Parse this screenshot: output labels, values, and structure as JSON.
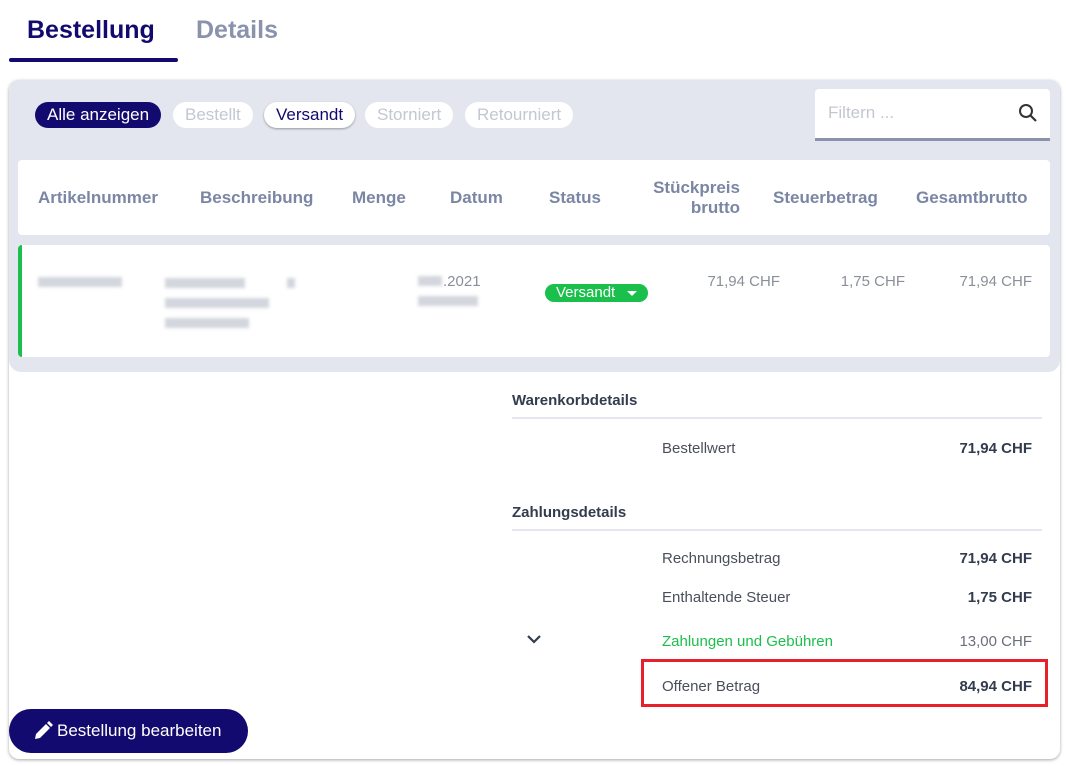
{
  "tabs": [
    {
      "label": "Bestellung",
      "active": true
    },
    {
      "label": "Details",
      "active": false
    }
  ],
  "filters": {
    "chips": [
      {
        "label": "Alle anzeigen",
        "state": "active"
      },
      {
        "label": "Bestellt",
        "state": "inactive"
      },
      {
        "label": "Versandt",
        "state": "selected"
      },
      {
        "label": "Storniert",
        "state": "inactive"
      },
      {
        "label": "Retourniert",
        "state": "inactive"
      }
    ],
    "search_placeholder": "Filtern ...",
    "search_icon": "search-icon"
  },
  "table": {
    "headers": [
      "Artikelnummer",
      "Beschreibung",
      "Menge",
      "Datum",
      "Status",
      "Stückpreis brutto",
      "Steuerbetrag",
      "Gesamtbrutto"
    ],
    "rows": [
      {
        "datum_visible": ".2021",
        "status": "Versandt",
        "stueckpreis": "71,94 CHF",
        "steuer": "1,75 CHF",
        "gesamt": "71,94 CHF"
      }
    ]
  },
  "warenkorb": {
    "title": "Warenkorbdetails",
    "bestellwert_label": "Bestellwert",
    "bestellwert": "71,94 CHF"
  },
  "zahlung": {
    "title": "Zahlungsdetails",
    "rechnungsbetrag_label": "Rechnungsbetrag",
    "rechnungsbetrag": "71,94 CHF",
    "steuer_label": "Enthaltende Steuer",
    "steuer": "1,75 CHF",
    "gebuehren_label": "Zahlungen und Gebühren",
    "gebuehren": "13,00 CHF",
    "offen_label": "Offener Betrag",
    "offen": "84,94 CHF"
  },
  "edit_button": "Bestellung bearbeiten",
  "colors": {
    "primary": "#120a6e",
    "success": "#1bbf4b",
    "highlight": "#e8202a"
  }
}
